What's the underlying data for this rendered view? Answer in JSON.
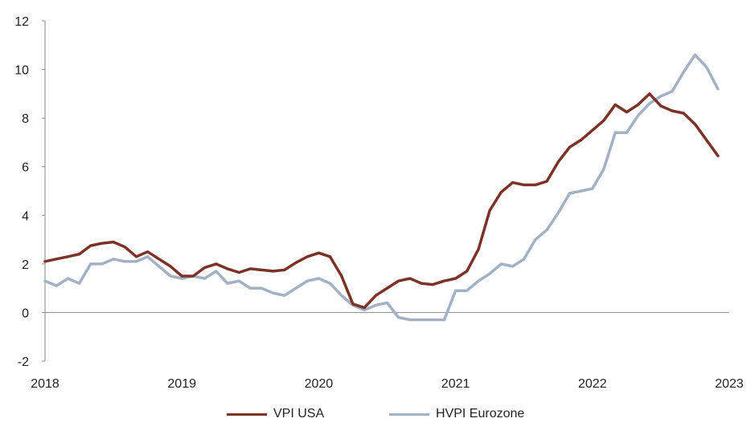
{
  "chart_data": {
    "type": "line",
    "title": "",
    "xlabel": "",
    "ylabel": "",
    "xlim": [
      2018,
      2023
    ],
    "ylim": [
      -2,
      12
    ],
    "grid": false,
    "legend_position": "bottom",
    "y_ticks": [
      -2,
      0,
      2,
      4,
      6,
      8,
      10,
      12
    ],
    "x_ticks": [
      2018,
      2019,
      2020,
      2021,
      2022,
      2023
    ],
    "x_tick_labels": [
      "2018",
      "2019",
      "2020",
      "2021",
      "2022",
      "2023"
    ],
    "y_tick_labels": [
      "-2",
      "0",
      "2",
      "4",
      "6",
      "8",
      "10",
      "12"
    ],
    "series": [
      {
        "name": "VPI USA",
        "color": "#7b3328",
        "x": [
          2018.0,
          2018.083,
          2018.167,
          2018.25,
          2018.333,
          2018.417,
          2018.5,
          2018.583,
          2018.667,
          2018.75,
          2018.833,
          2018.917,
          2019.0,
          2019.083,
          2019.167,
          2019.25,
          2019.333,
          2019.417,
          2019.5,
          2019.583,
          2019.667,
          2019.75,
          2019.833,
          2019.917,
          2020.0,
          2020.083,
          2020.167,
          2020.25,
          2020.333,
          2020.417,
          2020.5,
          2020.583,
          2020.667,
          2020.75,
          2020.833,
          2020.917,
          2021.0,
          2021.083,
          2021.167,
          2021.25,
          2021.333,
          2021.417,
          2021.5,
          2021.583,
          2021.667,
          2021.75,
          2021.833,
          2021.917,
          2022.0,
          2022.083,
          2022.167,
          2022.25,
          2022.333,
          2022.417,
          2022.5,
          2022.583,
          2022.667,
          2022.75,
          2022.833,
          2022.917
        ],
        "values": [
          2.1,
          2.2,
          2.3,
          2.4,
          2.75,
          2.85,
          2.9,
          2.7,
          2.3,
          2.5,
          2.2,
          1.9,
          1.5,
          1.5,
          1.85,
          2.0,
          1.8,
          1.65,
          1.8,
          1.75,
          1.7,
          1.75,
          2.05,
          2.3,
          2.45,
          2.3,
          1.5,
          0.35,
          0.2,
          0.7,
          1.0,
          1.3,
          1.4,
          1.2,
          1.15,
          1.3,
          1.4,
          1.7,
          2.6,
          4.2,
          4.95,
          5.35,
          5.25,
          5.25,
          5.4,
          6.2,
          6.8,
          7.1,
          7.5,
          7.9,
          8.55,
          8.25,
          8.55,
          9.0,
          8.5,
          8.3,
          8.2,
          7.75,
          7.1,
          6.45
        ]
      },
      {
        "name": "HVPI Eurozone",
        "color": "#a3b1c4",
        "x": [
          2018.0,
          2018.083,
          2018.167,
          2018.25,
          2018.333,
          2018.417,
          2018.5,
          2018.583,
          2018.667,
          2018.75,
          2018.833,
          2018.917,
          2019.0,
          2019.083,
          2019.167,
          2019.25,
          2019.333,
          2019.417,
          2019.5,
          2019.583,
          2019.667,
          2019.75,
          2019.833,
          2019.917,
          2020.0,
          2020.083,
          2020.167,
          2020.25,
          2020.333,
          2020.417,
          2020.5,
          2020.583,
          2020.667,
          2020.75,
          2020.833,
          2020.917,
          2021.0,
          2021.083,
          2021.167,
          2021.25,
          2021.333,
          2021.417,
          2021.5,
          2021.583,
          2021.667,
          2021.75,
          2021.833,
          2021.917,
          2022.0,
          2022.083,
          2022.167,
          2022.25,
          2022.333,
          2022.417,
          2022.5,
          2022.583,
          2022.667,
          2022.75,
          2022.833,
          2022.917
        ],
        "values": [
          1.3,
          1.1,
          1.4,
          1.2,
          2.0,
          2.0,
          2.2,
          2.1,
          2.1,
          2.3,
          1.9,
          1.5,
          1.4,
          1.5,
          1.4,
          1.7,
          1.2,
          1.3,
          1.0,
          1.0,
          0.8,
          0.7,
          1.0,
          1.3,
          1.4,
          1.2,
          0.7,
          0.3,
          0.1,
          0.3,
          0.4,
          -0.2,
          -0.3,
          -0.3,
          -0.3,
          -0.3,
          0.9,
          0.9,
          1.3,
          1.6,
          2.0,
          1.9,
          2.2,
          3.0,
          3.4,
          4.1,
          4.9,
          5.0,
          5.1,
          5.9,
          7.4,
          7.4,
          8.1,
          8.6,
          8.9,
          9.1,
          9.9,
          10.6,
          10.1,
          9.2
        ]
      }
    ]
  }
}
